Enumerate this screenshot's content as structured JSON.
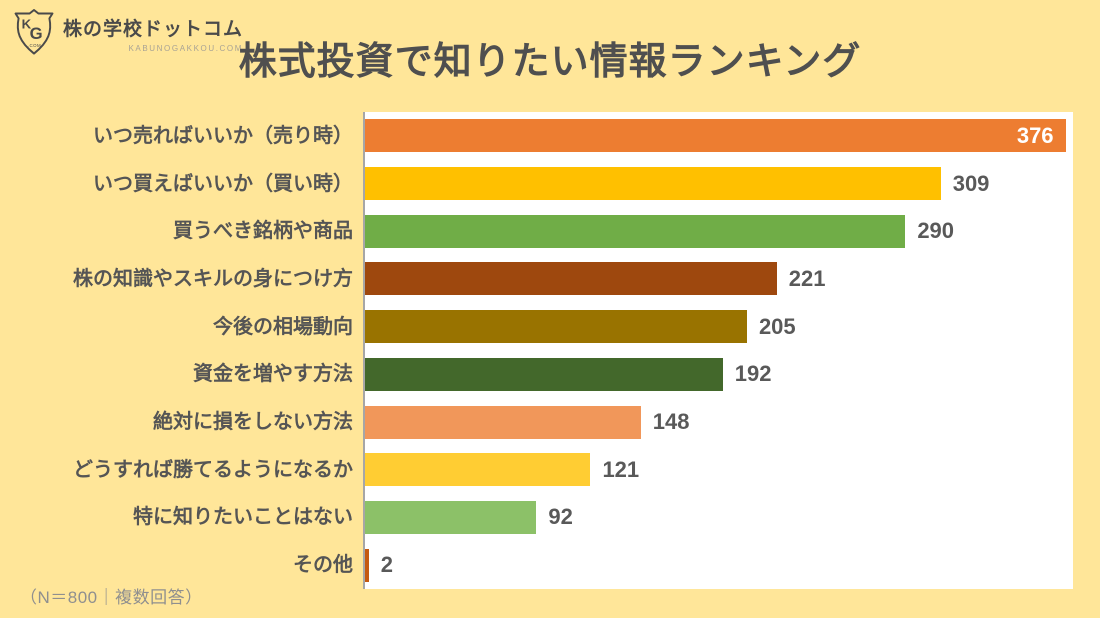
{
  "logo": {
    "icon": "kg-shield-logo",
    "name": "株の学校ドットコム",
    "domain": "KABUNOGAKKOU.COM"
  },
  "title": "株式投資で知りたい情報ランキング",
  "footnote": "（N＝800｜複数回答）",
  "colors": {
    "background": "#FFE699",
    "plot_background": "#FFFFFF",
    "axis_line": "#A6A6A6",
    "title_text": "#4F4F4F",
    "label_text": "#555555",
    "value_text": "#595959",
    "value_text_inside_bar": "#FFFFFF",
    "footnote_text": "#8F8F8F"
  },
  "chart_data": {
    "type": "bar",
    "orientation": "horizontal",
    "title": "株式投資で知りたい情報ランキング",
    "categories": [
      "いつ売ればいいか（売り時）",
      "いつ買えばいいか（買い時）",
      "買うべき銘柄や商品",
      "株の知識やスキルの身につけ方",
      "今後の相場動向",
      "資金を増やす方法",
      "絶対に損をしない方法",
      "どうすれば勝てるようになるか",
      "特に知りたいことはない",
      "その他"
    ],
    "values": [
      376,
      309,
      290,
      221,
      205,
      192,
      148,
      121,
      92,
      2
    ],
    "bar_colors": [
      "#ED7D31",
      "#FFC000",
      "#70AD47",
      "#9E480E",
      "#997300",
      "#43682B",
      "#F1975A",
      "#FFCD33",
      "#8CC168",
      "#C55A11"
    ],
    "xlim": [
      0,
      380
    ],
    "grid": false,
    "legend": false,
    "value_labels_shown": true,
    "first_value_label_inside_bar": true,
    "sample_note": "（N＝800｜複数回答）"
  }
}
